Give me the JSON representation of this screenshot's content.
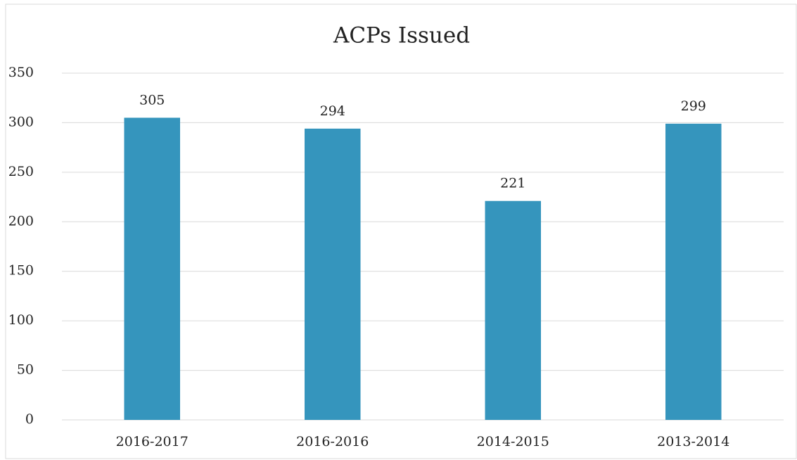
{
  "chart_data": {
    "type": "bar",
    "title": "ACPs Issued",
    "categories": [
      "2016-2017",
      "2016-2016",
      "2014-2015",
      "2013-2014"
    ],
    "values": [
      305,
      294,
      221,
      299
    ],
    "color": "#3595bd",
    "ylim": [
      0,
      350
    ],
    "yticks": [
      0,
      50,
      100,
      150,
      200,
      250,
      300,
      350
    ],
    "grid": true
  }
}
